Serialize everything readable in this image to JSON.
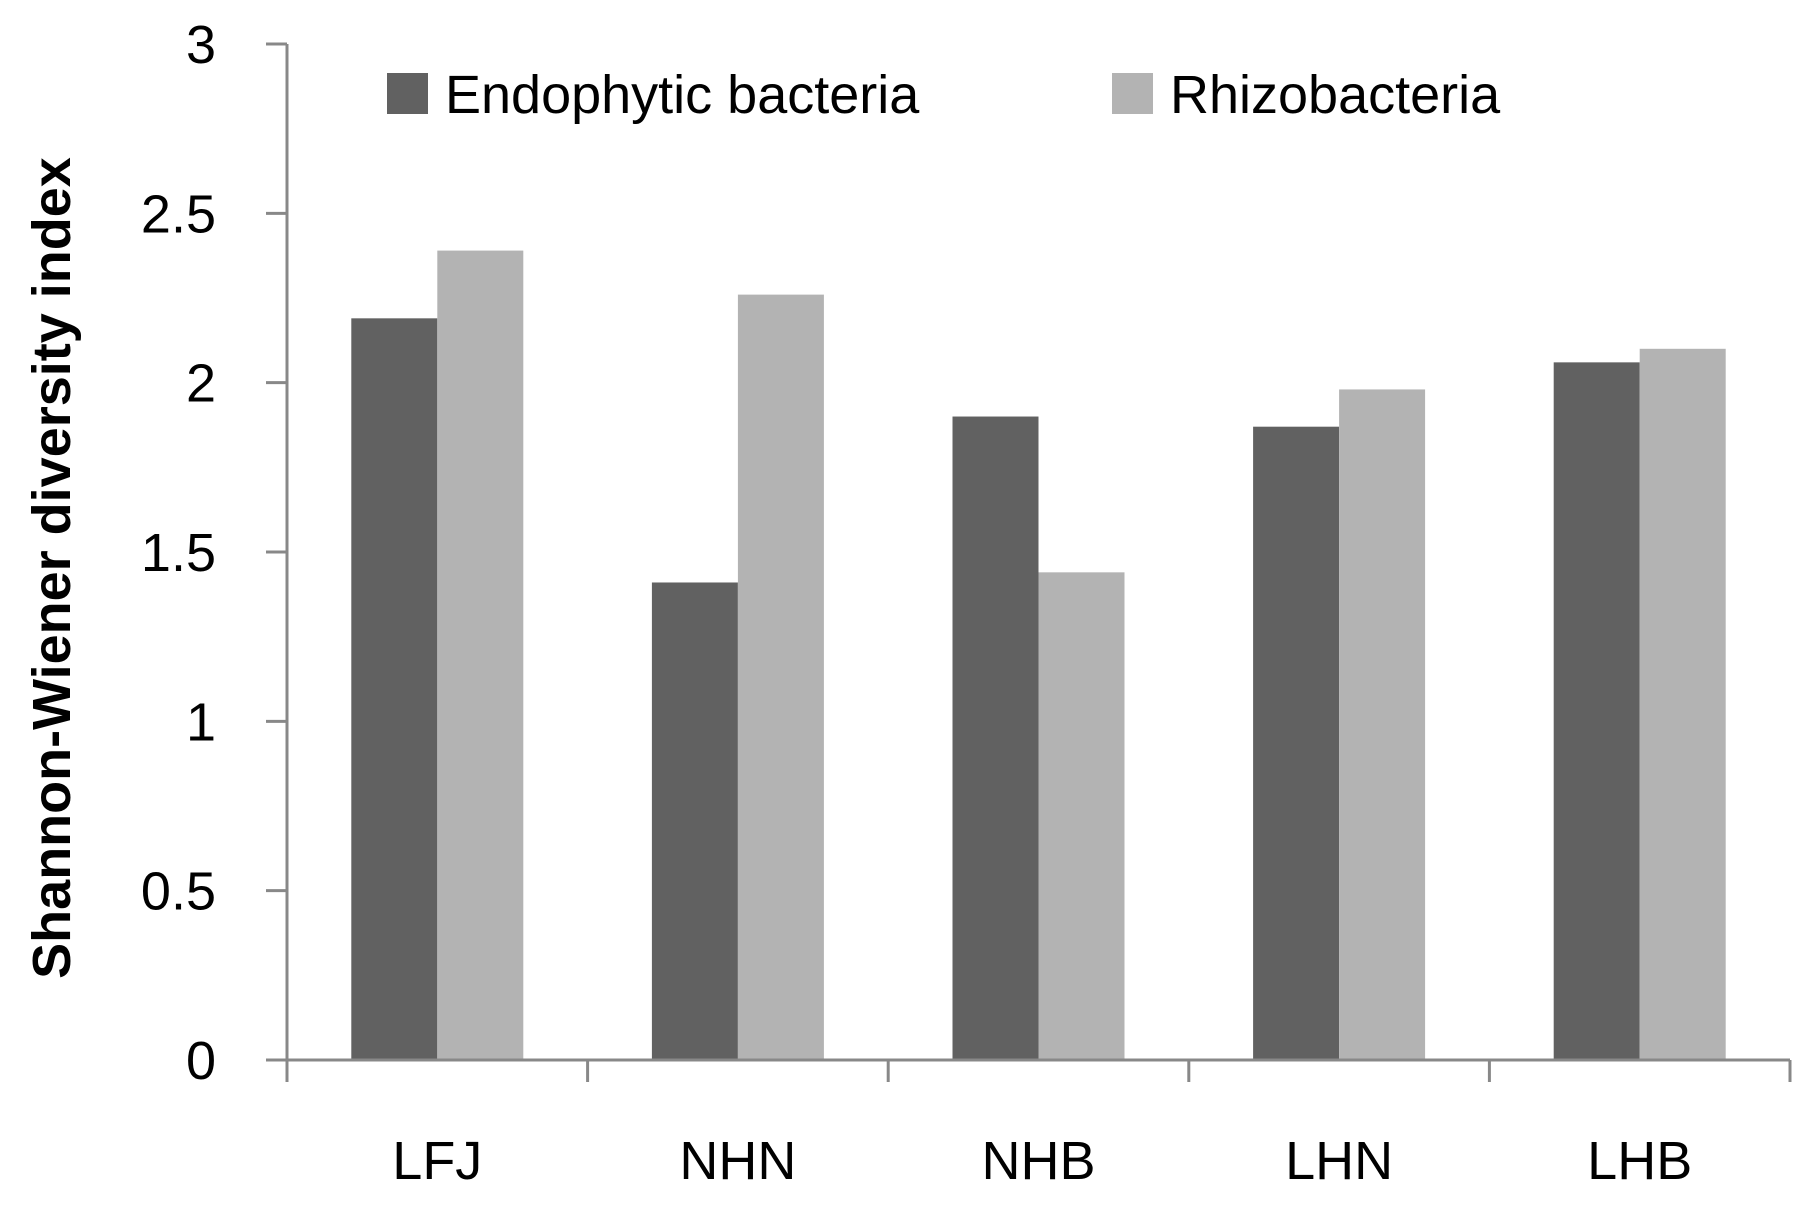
{
  "chart_data": {
    "type": "bar",
    "title": "",
    "xlabel": "",
    "ylabel": "Shannon-Wiener diversity index",
    "ylim": [
      0,
      3
    ],
    "yticks": [
      "0",
      "0.5",
      "1",
      "1.5",
      "2",
      "2.5",
      "3"
    ],
    "grid": false,
    "legend_position": "top",
    "categories": [
      "LFJ",
      "NHN",
      "NHB",
      "LHN",
      "LHB"
    ],
    "series": [
      {
        "name": "Endophytic bacteria",
        "color": "#616161",
        "values": [
          2.19,
          1.41,
          1.9,
          1.87,
          2.06
        ]
      },
      {
        "name": "Rhizobacteria",
        "color": "#b3b3b3",
        "values": [
          2.39,
          2.26,
          1.44,
          1.98,
          2.1
        ]
      }
    ]
  }
}
